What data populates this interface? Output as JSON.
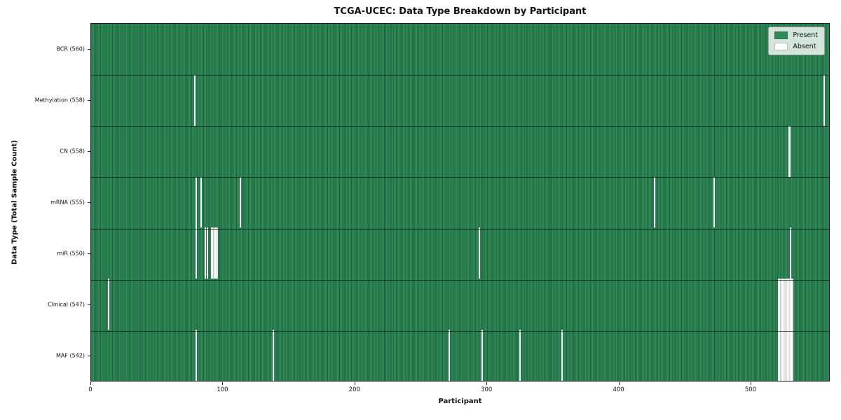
{
  "figure": {
    "background": "#ffffff"
  },
  "chart_data": {
    "type": "heatmap",
    "title": "TCGA-UCEC: Data Type Breakdown by Participant",
    "xlabel": "Participant",
    "ylabel": "Data Type (Total Sample Count)",
    "x_range": [
      0,
      560
    ],
    "x_ticks": [
      0,
      100,
      200,
      300,
      400,
      500
    ],
    "n_participants": 560,
    "grid": false,
    "legend": {
      "position": "upper right",
      "entries": [
        {
          "label": "Present",
          "color": "#2e8b57"
        },
        {
          "label": "Absent",
          "color": "#ffffff"
        }
      ]
    },
    "rows": [
      {
        "label": "BCR (560)",
        "data_type": "BCR",
        "sample_count": 560,
        "absent_participants": []
      },
      {
        "label": "Methylation (558)",
        "data_type": "Methylation",
        "sample_count": 558,
        "absent_participants": [
          78,
          556
        ]
      },
      {
        "label": "CN (558)",
        "data_type": "CN",
        "sample_count": 558,
        "absent_participants": [
          529,
          530
        ]
      },
      {
        "label": "mRNA (555)",
        "data_type": "mRNA",
        "sample_count": 555,
        "absent_participants": [
          79,
          83,
          113,
          427,
          472
        ]
      },
      {
        "label": "miR (550)",
        "data_type": "miR",
        "sample_count": 550,
        "absent_participants": [
          79,
          86,
          88,
          91,
          92,
          93,
          94,
          95,
          294,
          530
        ]
      },
      {
        "label": "Clinical (547)",
        "data_type": "Clinical",
        "sample_count": 547,
        "absent_participants": [
          13,
          521,
          522,
          523,
          524,
          525,
          526,
          527,
          528,
          529,
          530,
          531,
          532
        ]
      },
      {
        "label": "MAF (542)",
        "data_type": "MAF",
        "sample_count": 542,
        "absent_participants": [
          79,
          138,
          271,
          296,
          325,
          357,
          521,
          522,
          523,
          524,
          525,
          526,
          527,
          528,
          529,
          530,
          531,
          532
        ]
      }
    ],
    "colors": {
      "present_fill": "#2e8b57",
      "present_edge": "#1d5f3c",
      "absent_fill": "#ffffff",
      "row_separator": "#0a140c",
      "spine": "#1a1a1a"
    }
  }
}
